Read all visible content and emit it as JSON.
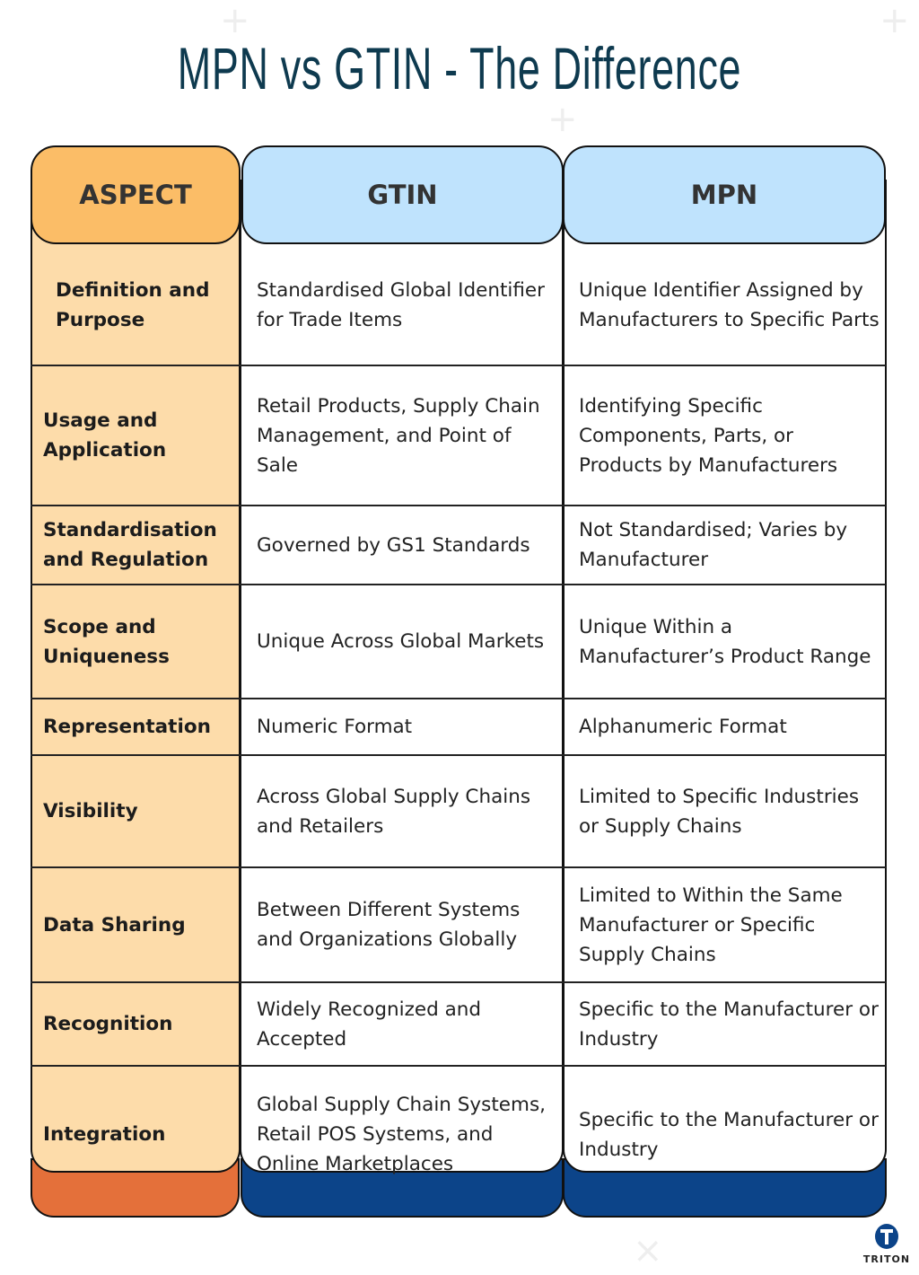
{
  "title": "MPN vs GTIN - The Difference",
  "headers": {
    "aspect": "ASPECT",
    "gtin": "GTIN",
    "mpn": "MPN"
  },
  "colors": {
    "aspect_header": "#fbbd67",
    "aspect_cell": "#fddcaa",
    "aspect_band": "#e4703a",
    "id_header": "#bfe3fd",
    "id_band": "#0c4489",
    "title": "#0e3a4f"
  },
  "rows": [
    {
      "aspect": "Definition and Purpose",
      "gtin": "Standardised Global Identifier for Trade Items",
      "mpn": "Unique Identifier Assigned by Manufacturers to Specific Parts"
    },
    {
      "aspect": "Usage and Application",
      "gtin": "Retail Products, Supply Chain Management, and Point of Sale",
      "mpn": "Identifying Specific Components, Parts, or Products by Manufacturers"
    },
    {
      "aspect": "Standardisation and Regulation",
      "gtin": "Governed by GS1 Standards",
      "mpn": "Not Standardised; Varies by Manufacturer"
    },
    {
      "aspect": "Scope and Uniqueness",
      "gtin": "Unique Across Global Markets",
      "mpn": "Unique Within a Manufacturer’s Product Range"
    },
    {
      "aspect": "Representation",
      "gtin": "Numeric Format",
      "mpn": "Alphanumeric Format"
    },
    {
      "aspect": "Visibility",
      "gtin": "Across Global Supply Chains and Retailers",
      "mpn": "Limited to Specific Industries or Supply Chains"
    },
    {
      "aspect": "Data Sharing",
      "gtin": "Between Different Systems and Organizations Globally",
      "mpn": "Limited to Within the Same Manufacturer or Specific Supply Chains"
    },
    {
      "aspect": "Recognition",
      "gtin": "Widely Recognized and Accepted",
      "mpn": "Specific to the Manufacturer or Industry"
    },
    {
      "aspect": "Integration",
      "gtin": "Global Supply Chain Systems, Retail POS Systems, and Online Marketplaces",
      "mpn": "Specific to the Manufacturer or Industry"
    }
  ],
  "logo": {
    "text": "TRITON",
    "icon": "triton-t-logo-icon"
  }
}
